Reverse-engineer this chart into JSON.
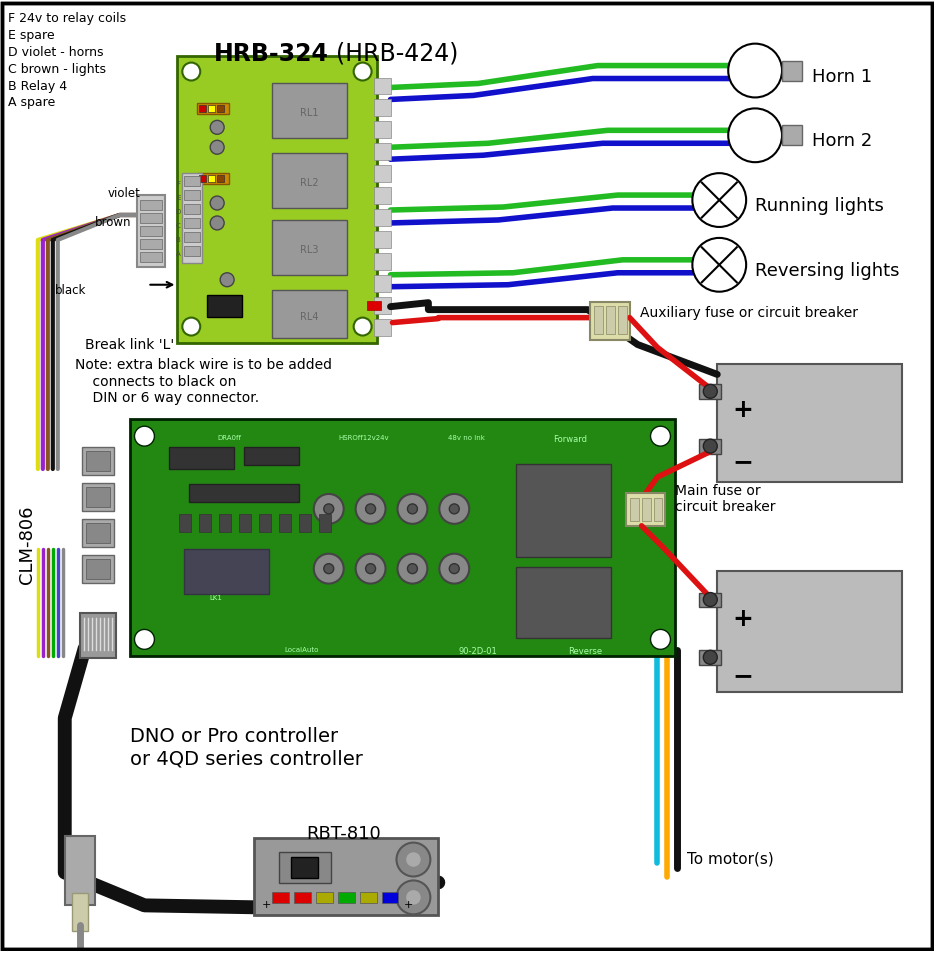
{
  "bg_color": "#ffffff",
  "green_color": "#22bb22",
  "blue_color": "#1111cc",
  "red_color": "#dd1111",
  "black_color": "#111111",
  "yellow_color": "#dddd11",
  "violet_color": "#9922cc",
  "brown_color": "#885522",
  "cyan_color": "#11bbdd",
  "orange_color": "#ffaa00",
  "pcb_green_hrb": "#99cc22",
  "pcb_green_clm": "#228811",
  "relay_gray": "#999999",
  "connector_beige": "#ddddaa",
  "box_gray": "#bbbbbb",
  "dark_gray": "#666666",
  "title_hrb324": "HRB-324",
  "title_hrb424": "(HRB-424)",
  "title_clm806": "CLM-806",
  "title_rbt810": "RBT-810",
  "title_dno": "DNO or Pro controller\nor 4QD series controller",
  "label_horn1": "Horn 1",
  "label_horn2": "Horn 2",
  "label_running": "Running lights",
  "label_reversing": "Reversing lights",
  "label_aux_fuse": "Auxiliary fuse or circuit breaker",
  "label_main_fuse": "Main fuse or\ncircuit breaker",
  "label_motor": "To motor(s)",
  "label_break": "Break link 'L'",
  "label_note": "Note: extra black wire is to be added\n    connects to black on\n    DIN or 6 way connector.",
  "label_violet": "violet",
  "label_brown": "brown",
  "label_black": "black",
  "pin_labels": [
    "F 24v to relay coils",
    "E spare",
    "D violet - horns",
    "C brown - lights",
    "B Relay 4",
    "A spare"
  ],
  "led_colors": [
    "#dd0000",
    "#dd0000",
    "#aaaa00",
    "#00aa00",
    "#aaaa00",
    "#0000dd"
  ]
}
